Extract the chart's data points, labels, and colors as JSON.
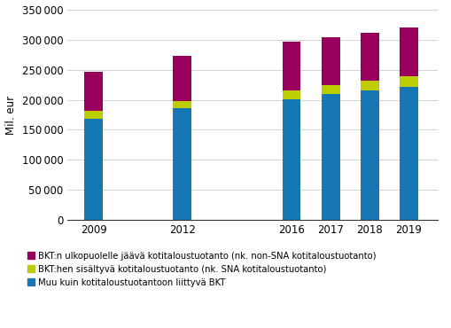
{
  "years": [
    2009,
    2012,
    2016,
    2017,
    2018,
    2019
  ],
  "blue": [
    169000,
    186000,
    201000,
    209000,
    215000,
    222000
  ],
  "yellow_green": [
    12000,
    12000,
    15000,
    16000,
    17000,
    18000
  ],
  "magenta": [
    66000,
    75000,
    81000,
    79000,
    79000,
    81000
  ],
  "bar_color_blue": "#1777B4",
  "bar_color_yellow": "#BCCE00",
  "bar_color_magenta": "#99005E",
  "ylabel": "Mil. eur",
  "ylim": [
    0,
    350000
  ],
  "yticks": [
    0,
    50000,
    100000,
    150000,
    200000,
    250000,
    300000,
    350000
  ],
  "legend1": "BKT:n ulkopuolelle jäävä kotitaloustuotanto (nk. non-SNA kotitaloustuotanto)",
  "legend2": "BKT:hen sisältyvä kotitaloustuotanto (nk. SNA kotitaloustuotanto)",
  "legend3": "Muu kuin kotitaloustuotantoon liittyvä BKT",
  "positions": [
    0.5,
    2.2,
    4.3,
    5.05,
    5.8,
    6.55
  ],
  "bar_width": 0.35,
  "xlim": [
    0.0,
    7.1
  ]
}
